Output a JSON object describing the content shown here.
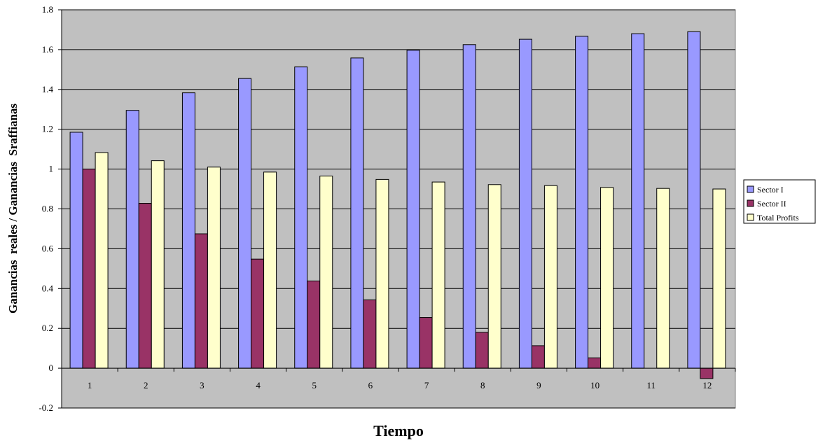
{
  "chart_data": {
    "type": "bar",
    "title": "",
    "xlabel": "Tiempo",
    "ylabel": "Ganancias  reales / Ganancias  Sraffianas",
    "categories": [
      "1",
      "2",
      "3",
      "4",
      "5",
      "6",
      "7",
      "8",
      "9",
      "10",
      "11",
      "12"
    ],
    "ylim": [
      -0.2,
      1.8
    ],
    "yticks": [
      "-0.2",
      "0",
      "0.2",
      "0.4",
      "0.6",
      "0.8",
      "1",
      "1.2",
      "1.4",
      "1.6",
      "1.8"
    ],
    "grid": true,
    "legend_position": "right",
    "series": [
      {
        "name": "Sector I",
        "color": "#9999ff",
        "values": [
          1.185,
          1.295,
          1.383,
          1.455,
          1.513,
          1.558,
          1.597,
          1.625,
          1.652,
          1.667,
          1.68,
          1.69
        ]
      },
      {
        "name": "Sector II",
        "color": "#993366",
        "values": [
          1.0,
          0.828,
          0.675,
          0.548,
          0.438,
          0.343,
          0.255,
          0.18,
          0.113,
          0.052,
          0.0,
          -0.052
        ]
      },
      {
        "name": "Total Profits",
        "color": "#ffffcc",
        "values": [
          1.083,
          1.042,
          1.01,
          0.985,
          0.965,
          0.948,
          0.935,
          0.922,
          0.917,
          0.908,
          0.903,
          0.9
        ]
      }
    ],
    "colors": {
      "plot_background": "#c0c0c0",
      "gridline": "#000000",
      "bar_outline": "#000000"
    }
  }
}
